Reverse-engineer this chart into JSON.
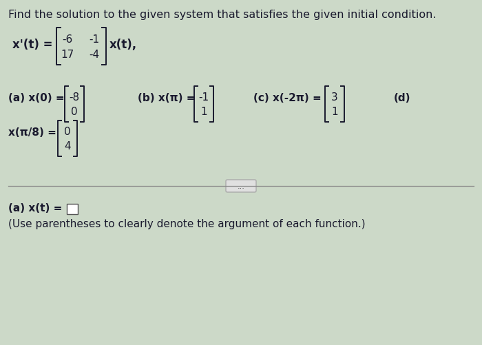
{
  "background_color": "#ccd9c8",
  "title_text": "Find the solution to the given system that satisfies the given initial condition.",
  "matrix_A_r0": [
    "-6",
    "-1"
  ],
  "matrix_A_r1": [
    "17",
    "-4"
  ],
  "ic_a_label": "(a) x(0) =",
  "ic_a_vec": [
    "-8",
    "0"
  ],
  "ic_b_label": "(b) x(π) =",
  "ic_b_vec": [
    "-1",
    "1"
  ],
  "ic_c_label": "(c) x(-2π) =",
  "ic_c_vec": [
    "3",
    "1"
  ],
  "ic_d_label": "(d)",
  "xpi8_label": "x(π/8) =",
  "xpi8_vec": [
    "0",
    "4"
  ],
  "answer_label": "(a) x(t) =",
  "note_text": "(Use parentheses to clearly denote the argument of each function.)",
  "font_size_title": 11.5,
  "font_size_body": 11,
  "font_size_note": 11,
  "text_color": "#1a1a2e",
  "bracket_color": "#1a1a2e",
  "divider_color": "#888888",
  "btn_text": "...",
  "btn_face": "#e0e0e0",
  "btn_edge": "#aaaaaa"
}
